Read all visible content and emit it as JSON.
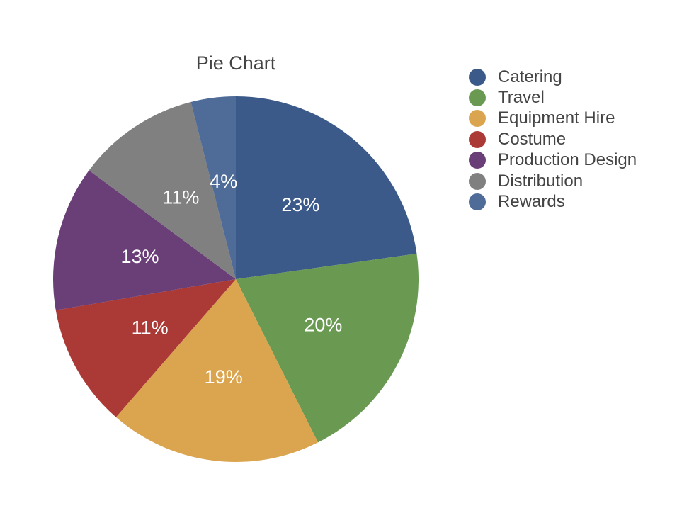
{
  "chart_data": {
    "type": "pie",
    "title": "Pie Chart",
    "legend_position": "right",
    "slices": [
      {
        "label": "Catering",
        "value": 23,
        "display": "23%",
        "color": "#3b5a8a"
      },
      {
        "label": "Travel",
        "value": 20,
        "display": "20%",
        "color": "#6a9a52"
      },
      {
        "label": "Equipment Hire",
        "value": 19,
        "display": "19%",
        "color": "#dba550"
      },
      {
        "label": "Costume",
        "value": 11,
        "display": "11%",
        "color": "#ab3a37"
      },
      {
        "label": "Production Design",
        "value": 13,
        "display": "13%",
        "color": "#6a3f78"
      },
      {
        "label": "Distribution",
        "value": 11,
        "display": "11%",
        "color": "#7f807f"
      },
      {
        "label": "Rewards",
        "value": 4,
        "display": "4%",
        "color": "#4f6b98"
      }
    ]
  }
}
